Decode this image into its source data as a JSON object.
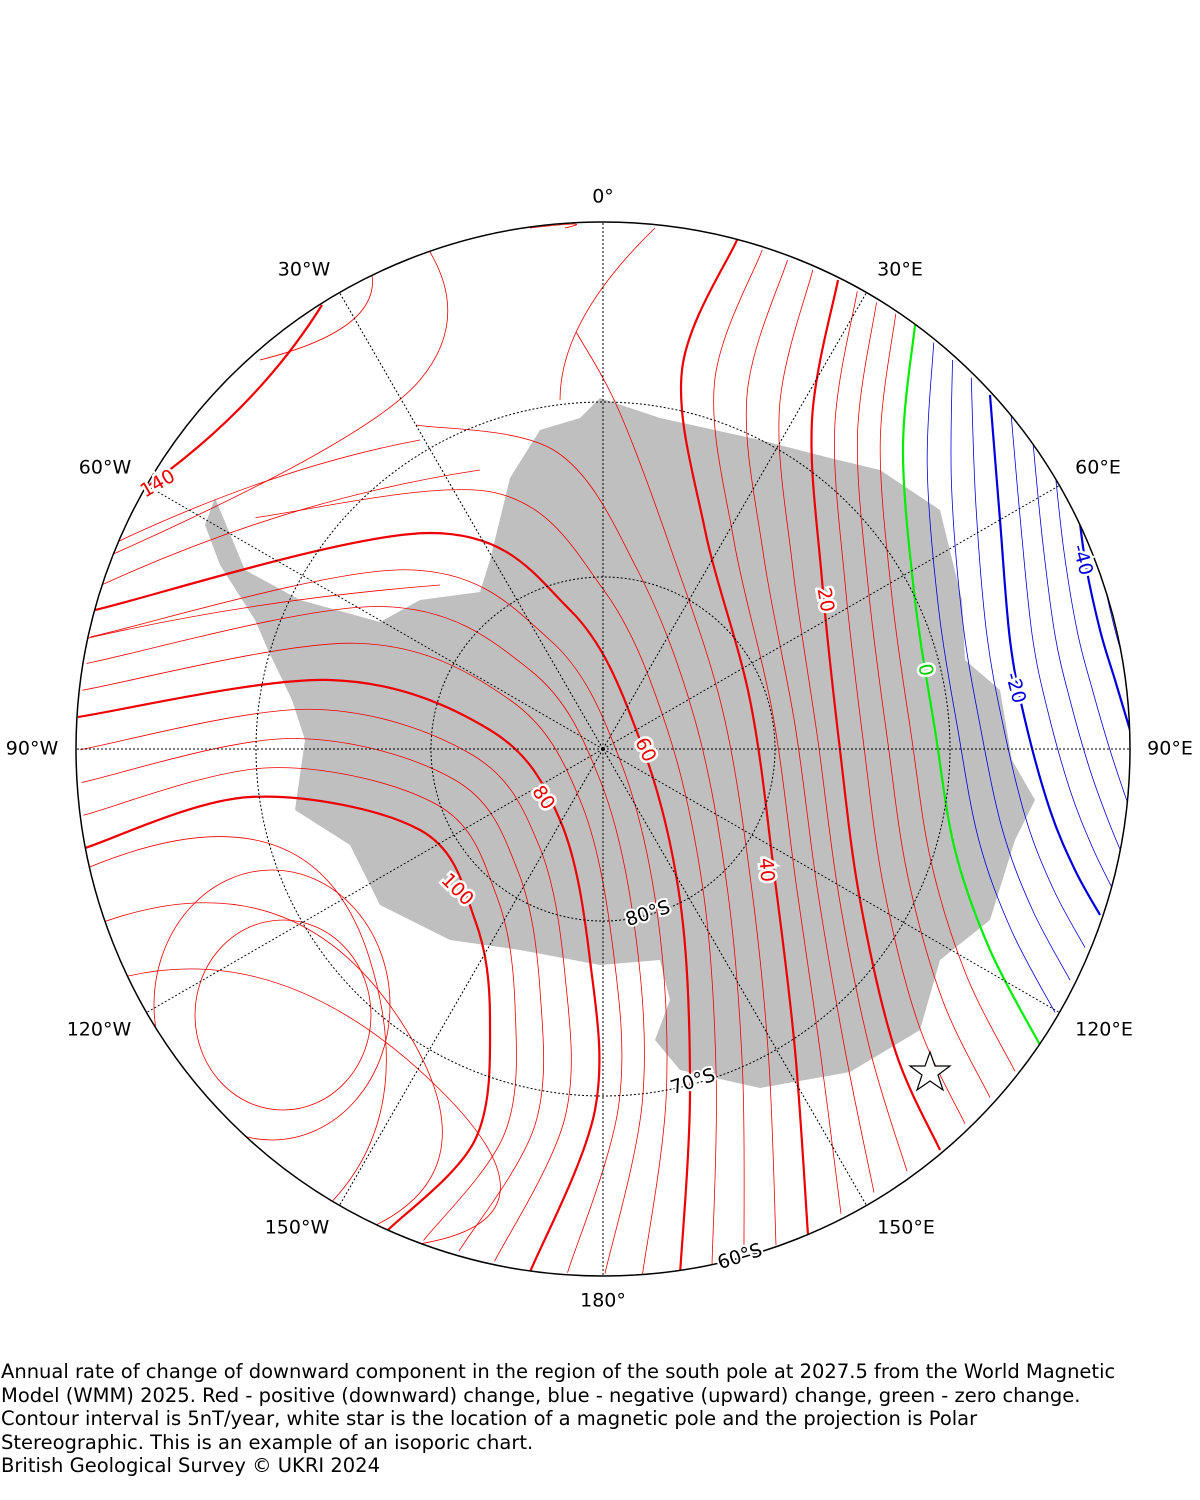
{
  "map": {
    "longitude_labels": [
      "0°",
      "30°E",
      "60°E",
      "90°E",
      "120°E",
      "150°E",
      "180°",
      "150°W",
      "120°W",
      "90°W",
      "60°W",
      "30°W"
    ],
    "latitude_labels": [
      "80°S",
      "70°S",
      "60°S"
    ],
    "contour_labels": [
      "140",
      "20",
      "40",
      "60",
      "80",
      "100",
      "0",
      "-20",
      "-40"
    ]
  },
  "caption": {
    "lines": [
      "Annual rate of change of downward component in the region of the south pole at 2027.5 from the World Magnetic",
      "Model (WMM) 2025. Red - positive (downward) change, blue - negative (upward) change, green - zero change.",
      "Contour interval is 5nT/year, white star is the location of a magnetic pole and the projection is Polar",
      "Stereographic. This is an example of an isoporic chart."
    ],
    "credit": "British Geological Survey © UKRI 2024"
  }
}
